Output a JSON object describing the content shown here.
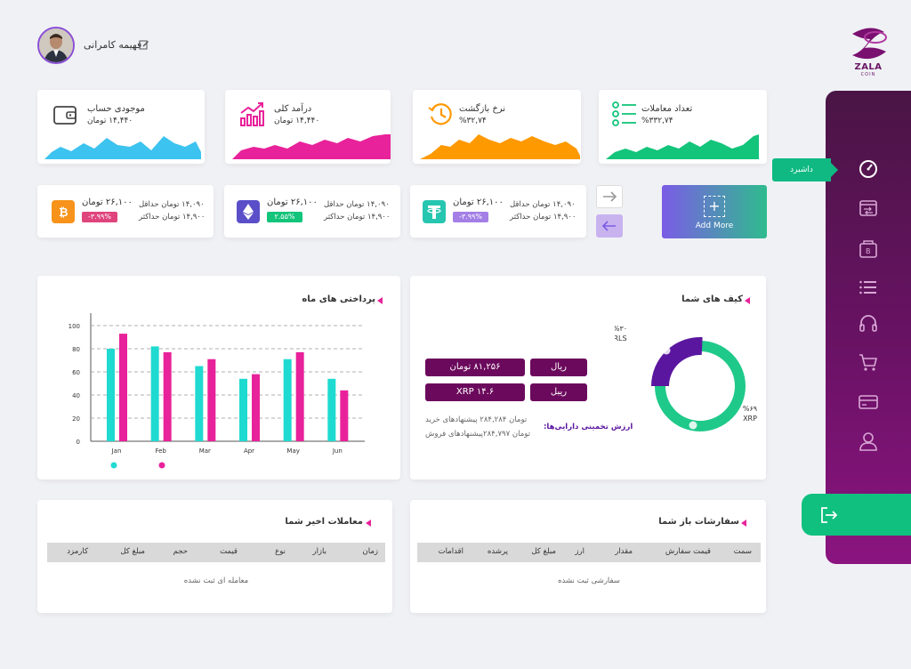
{
  "user": {
    "name": "فهیمه کامرانی"
  },
  "logo": {
    "brand": "ZALA",
    "sub": "COIN"
  },
  "sidebar": {
    "active_label": "داشبرد",
    "icons": [
      "dashboard-gauge-icon",
      "exchange-card-icon",
      "wallet-bitcoin-icon",
      "list-icon",
      "headphones-icon",
      "cart-icon",
      "credit-card-icon",
      "user-icon"
    ]
  },
  "stats": [
    {
      "title": "موجودی حساب",
      "value": "۱۴,۴۴۰ تومان",
      "color": "#3cc3f0",
      "icon": "wallet-icon"
    },
    {
      "title": "درآمد کلی",
      "value": "۱۴,۴۴۰ تومان",
      "color": "#e8229a",
      "icon": "growth-chart-icon"
    },
    {
      "title": "نرخ بازگشت",
      "value": "%۳۲,۷۴",
      "color": "#ff9900",
      "icon": "history-clock-icon"
    },
    {
      "title": "تعداد معاملات",
      "value": "%۳۳۲,۷۴",
      "color": "#13c47b",
      "icon": "checklist-icon"
    }
  ],
  "coins": [
    {
      "price": "۲۶,۱۰۰ تومان",
      "min": "۱۴,۰۹۰ تومان حداقل",
      "max": "۱۴,۹۰۰ تومان حداکثر",
      "change": "-۳.۹۹%",
      "badge_color": "#e0447c",
      "icon_color": "#f7931a",
      "icon": "bitcoin-icon"
    },
    {
      "price": "۲۶,۱۰۰ تومان",
      "min": "۱۴,۰۹۰ تومان حداقل",
      "max": "۱۴,۹۰۰ تومان حداکثر",
      "change": "۲.۵۵%",
      "badge_color": "#13c47b",
      "icon_color": "#5a4fc8",
      "icon": "ethereum-icon"
    },
    {
      "price": "۲۶,۱۰۰ تومان",
      "min": "۱۴,۰۹۰ تومان حداقل",
      "max": "۱۴,۹۰۰ تومان حداکثر",
      "change": "-۳.۹۹%",
      "badge_color": "#a37fe6",
      "icon_color": "#26c6b0",
      "icon": "tether-icon"
    }
  ],
  "add_more": {
    "label": "Add More",
    "plus": "+"
  },
  "payments": {
    "title": "پرداختی های ماه",
    "chart_data": {
      "type": "bar",
      "categories": [
        "Jan",
        "Feb",
        "Mar",
        "Apr",
        "May",
        "Jun"
      ],
      "series": [
        {
          "values": [
            80,
            82,
            65,
            54,
            71,
            54
          ],
          "color": "#1fdad0"
        },
        {
          "values": [
            93,
            77,
            71,
            58,
            77,
            44
          ],
          "color": "#e8229a"
        }
      ],
      "yticks": [
        "100",
        "80",
        "60",
        "40",
        "20",
        "0"
      ],
      "ylim": [
        0,
        100
      ],
      "grid": true
    }
  },
  "wallet": {
    "title": "کیف های شما",
    "pills": [
      "ریال",
      "۸۱,۲۵۶ تومان",
      "ریبل",
      "XRP ۱۴.۶"
    ],
    "estimate_label": "ارزش تخمینی دارایی‌ها:",
    "buy_line": "تومان ۲۸۴,۲۸۴  پیشنهادهای خرید",
    "sell_line": "تومان ۲۸۴,۷۹۷پیشنهادهای فروش",
    "chart_data": {
      "type": "pie",
      "labels": [
        "RLS",
        "XRP"
      ],
      "values": [
        30,
        69
      ],
      "label_texts": [
        "%۳۰",
        "%۶۹"
      ],
      "colors": [
        "#5b16a0",
        "#1fc98a"
      ]
    }
  },
  "trades": {
    "title": "معاملات اخیر شما",
    "columns": [
      "زمان",
      "بازار",
      "نوع",
      "قیمت",
      "حجم",
      "مبلغ کل",
      "کارمزد"
    ],
    "empty": "معامله ای ثبت نشده"
  },
  "orders": {
    "title": "سفارشات باز شما",
    "columns": [
      "سمت",
      "قیمت سفارش",
      "مقدار",
      "ارز",
      "مبلغ کل",
      "پرشده",
      "اقدامات"
    ],
    "empty": "سفارشی ثبت نشده"
  }
}
